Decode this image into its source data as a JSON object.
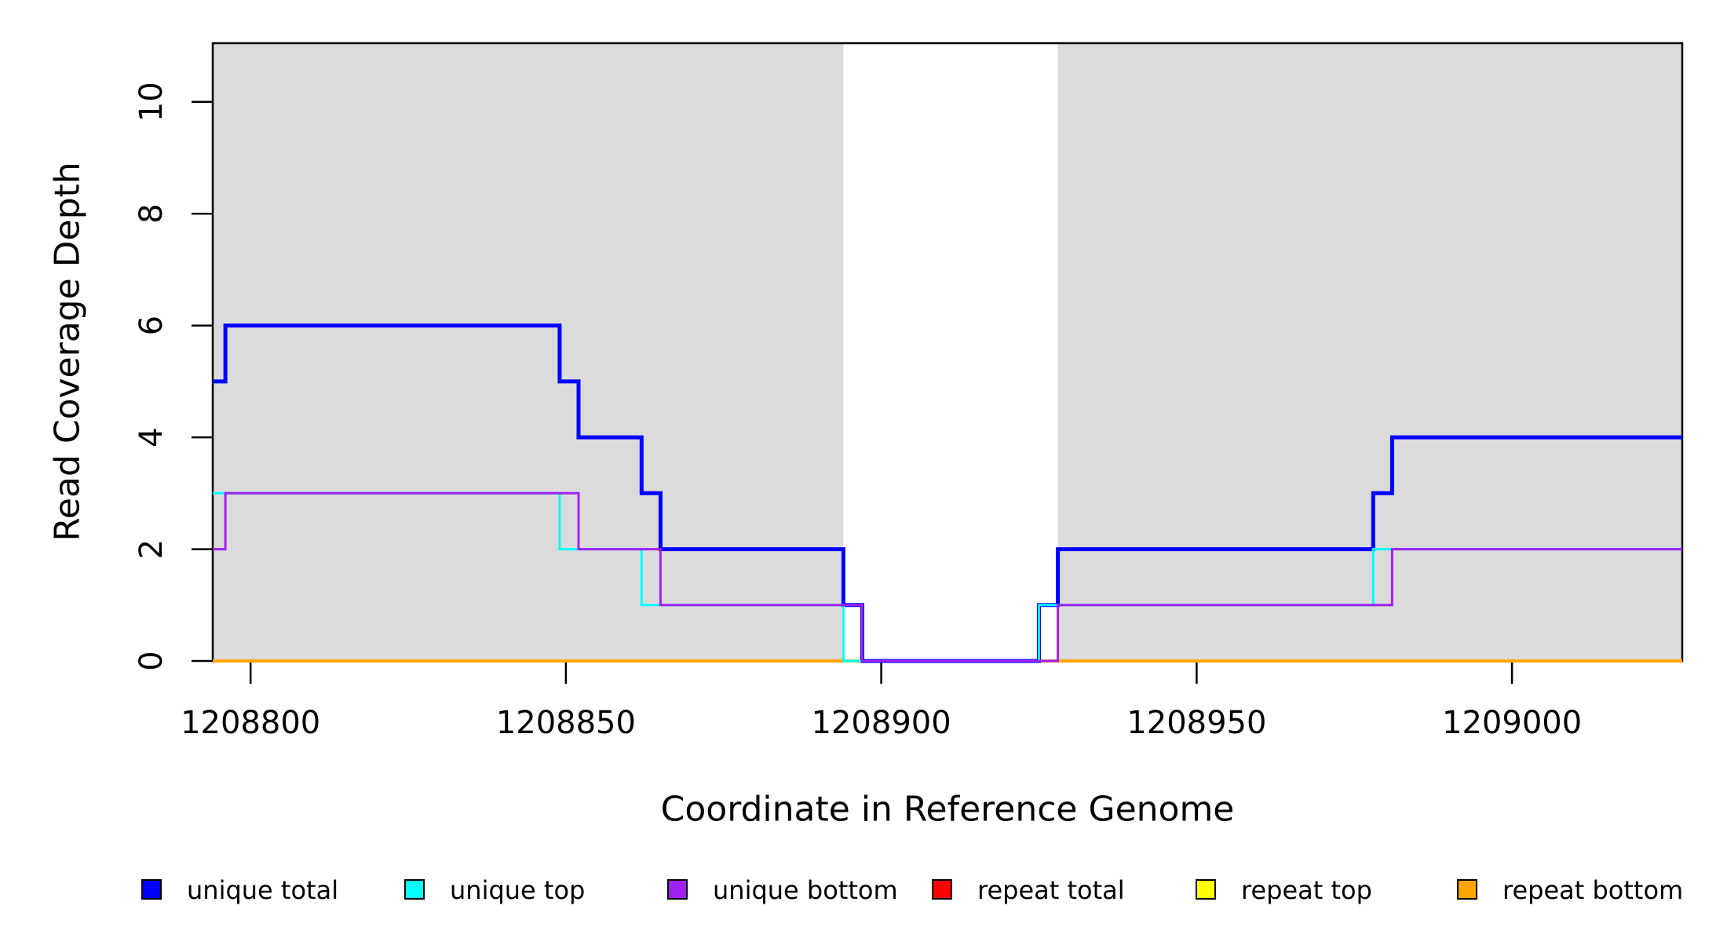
{
  "chart_data": {
    "type": "line",
    "subtype": "step-post",
    "title": "",
    "xlabel": "Coordinate in Reference Genome",
    "ylabel": "Read Coverage Depth",
    "xlim": [
      1208794,
      1209027
    ],
    "ylim": [
      0,
      11.05
    ],
    "x_ticks": [
      1208800,
      1208850,
      1208900,
      1208950,
      1209000
    ],
    "y_ticks": [
      0,
      2,
      4,
      6,
      8,
      10
    ],
    "grid": false,
    "legend_position": "bottom",
    "background_color": "#FFFFFF",
    "shaded_color": "#DBDBDB",
    "shaded_regions": [
      {
        "x0": 1208794,
        "x1": 1208894
      },
      {
        "x0": 1208928,
        "x1": 1209027
      }
    ],
    "series": [
      {
        "name": "repeat total",
        "color": "#FF0000",
        "line_width": 3,
        "steps": [
          [
            1208794,
            0
          ]
        ]
      },
      {
        "name": "repeat top",
        "color": "#FFFF00",
        "line_width": 3,
        "steps": [
          [
            1208794,
            0
          ]
        ]
      },
      {
        "name": "repeat bottom",
        "color": "#FFA500",
        "line_width": 4,
        "steps": [
          [
            1208794,
            0
          ]
        ]
      },
      {
        "name": "unique total",
        "color": "#0000FF",
        "line_width": 5,
        "steps": [
          [
            1208794,
            5
          ],
          [
            1208796,
            6
          ],
          [
            1208849,
            5
          ],
          [
            1208852,
            4
          ],
          [
            1208862,
            3
          ],
          [
            1208865,
            2
          ],
          [
            1208894,
            1
          ],
          [
            1208897,
            0
          ],
          [
            1208925,
            1
          ],
          [
            1208928,
            2
          ],
          [
            1208978,
            3
          ],
          [
            1208981,
            4
          ]
        ]
      },
      {
        "name": "unique top",
        "color": "#00FFFF",
        "line_width": 3,
        "steps": [
          [
            1208794,
            3
          ],
          [
            1208849,
            2
          ],
          [
            1208862,
            1
          ],
          [
            1208894,
            0
          ],
          [
            1208925,
            1
          ],
          [
            1208978,
            2
          ]
        ]
      },
      {
        "name": "unique bottom",
        "color": "#A020F0",
        "line_width": 3,
        "steps": [
          [
            1208794,
            2
          ],
          [
            1208796,
            3
          ],
          [
            1208852,
            2
          ],
          [
            1208865,
            1
          ],
          [
            1208897,
            0
          ],
          [
            1208928,
            1
          ],
          [
            1208981,
            2
          ]
        ]
      }
    ],
    "legend": [
      {
        "label": "unique total",
        "color": "#0000FF"
      },
      {
        "label": "unique top",
        "color": "#00FFFF"
      },
      {
        "label": "unique bottom",
        "color": "#A020F0"
      },
      {
        "label": "repeat total",
        "color": "#FF0000"
      },
      {
        "label": "repeat top",
        "color": "#FFFF00"
      },
      {
        "label": "repeat bottom",
        "color": "#FFA500"
      }
    ]
  }
}
